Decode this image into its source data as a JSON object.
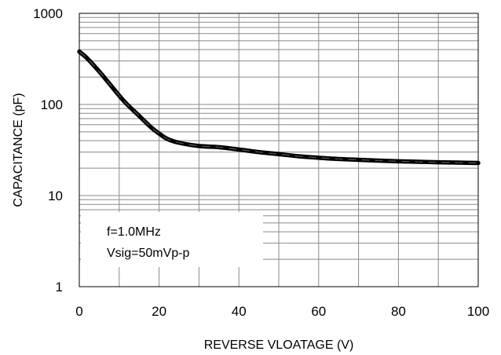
{
  "chart_data": {
    "type": "line",
    "xlabel": "REVERSE VLOATAGE (V)",
    "ylabel": "CAPACITANCE (pF)",
    "xlim": [
      0,
      100
    ],
    "ylim": [
      1,
      1000
    ],
    "y_scale": "log",
    "grid": true,
    "x_ticks": [
      "0",
      "20",
      "40",
      "60",
      "80",
      "100"
    ],
    "y_ticks": [
      "1",
      "10",
      "100",
      "1000"
    ],
    "annotations": [
      "f=1.0MHz",
      "Vsig=50mVp-p"
    ],
    "series": [
      {
        "x": [
          0,
          2,
          5,
          8,
          10,
          12,
          15,
          18,
          20,
          22,
          25,
          30,
          35,
          40,
          45,
          50,
          55,
          60,
          65,
          70,
          75,
          80,
          85,
          90,
          95,
          100
        ],
        "y": [
          380,
          320,
          230,
          160,
          125,
          100,
          75,
          56,
          48,
          42,
          38,
          35,
          34,
          32,
          30,
          28.5,
          27,
          26,
          25.2,
          24.7,
          24.2,
          23.8,
          23.5,
          23.2,
          23,
          22.8
        ]
      }
    ]
  }
}
